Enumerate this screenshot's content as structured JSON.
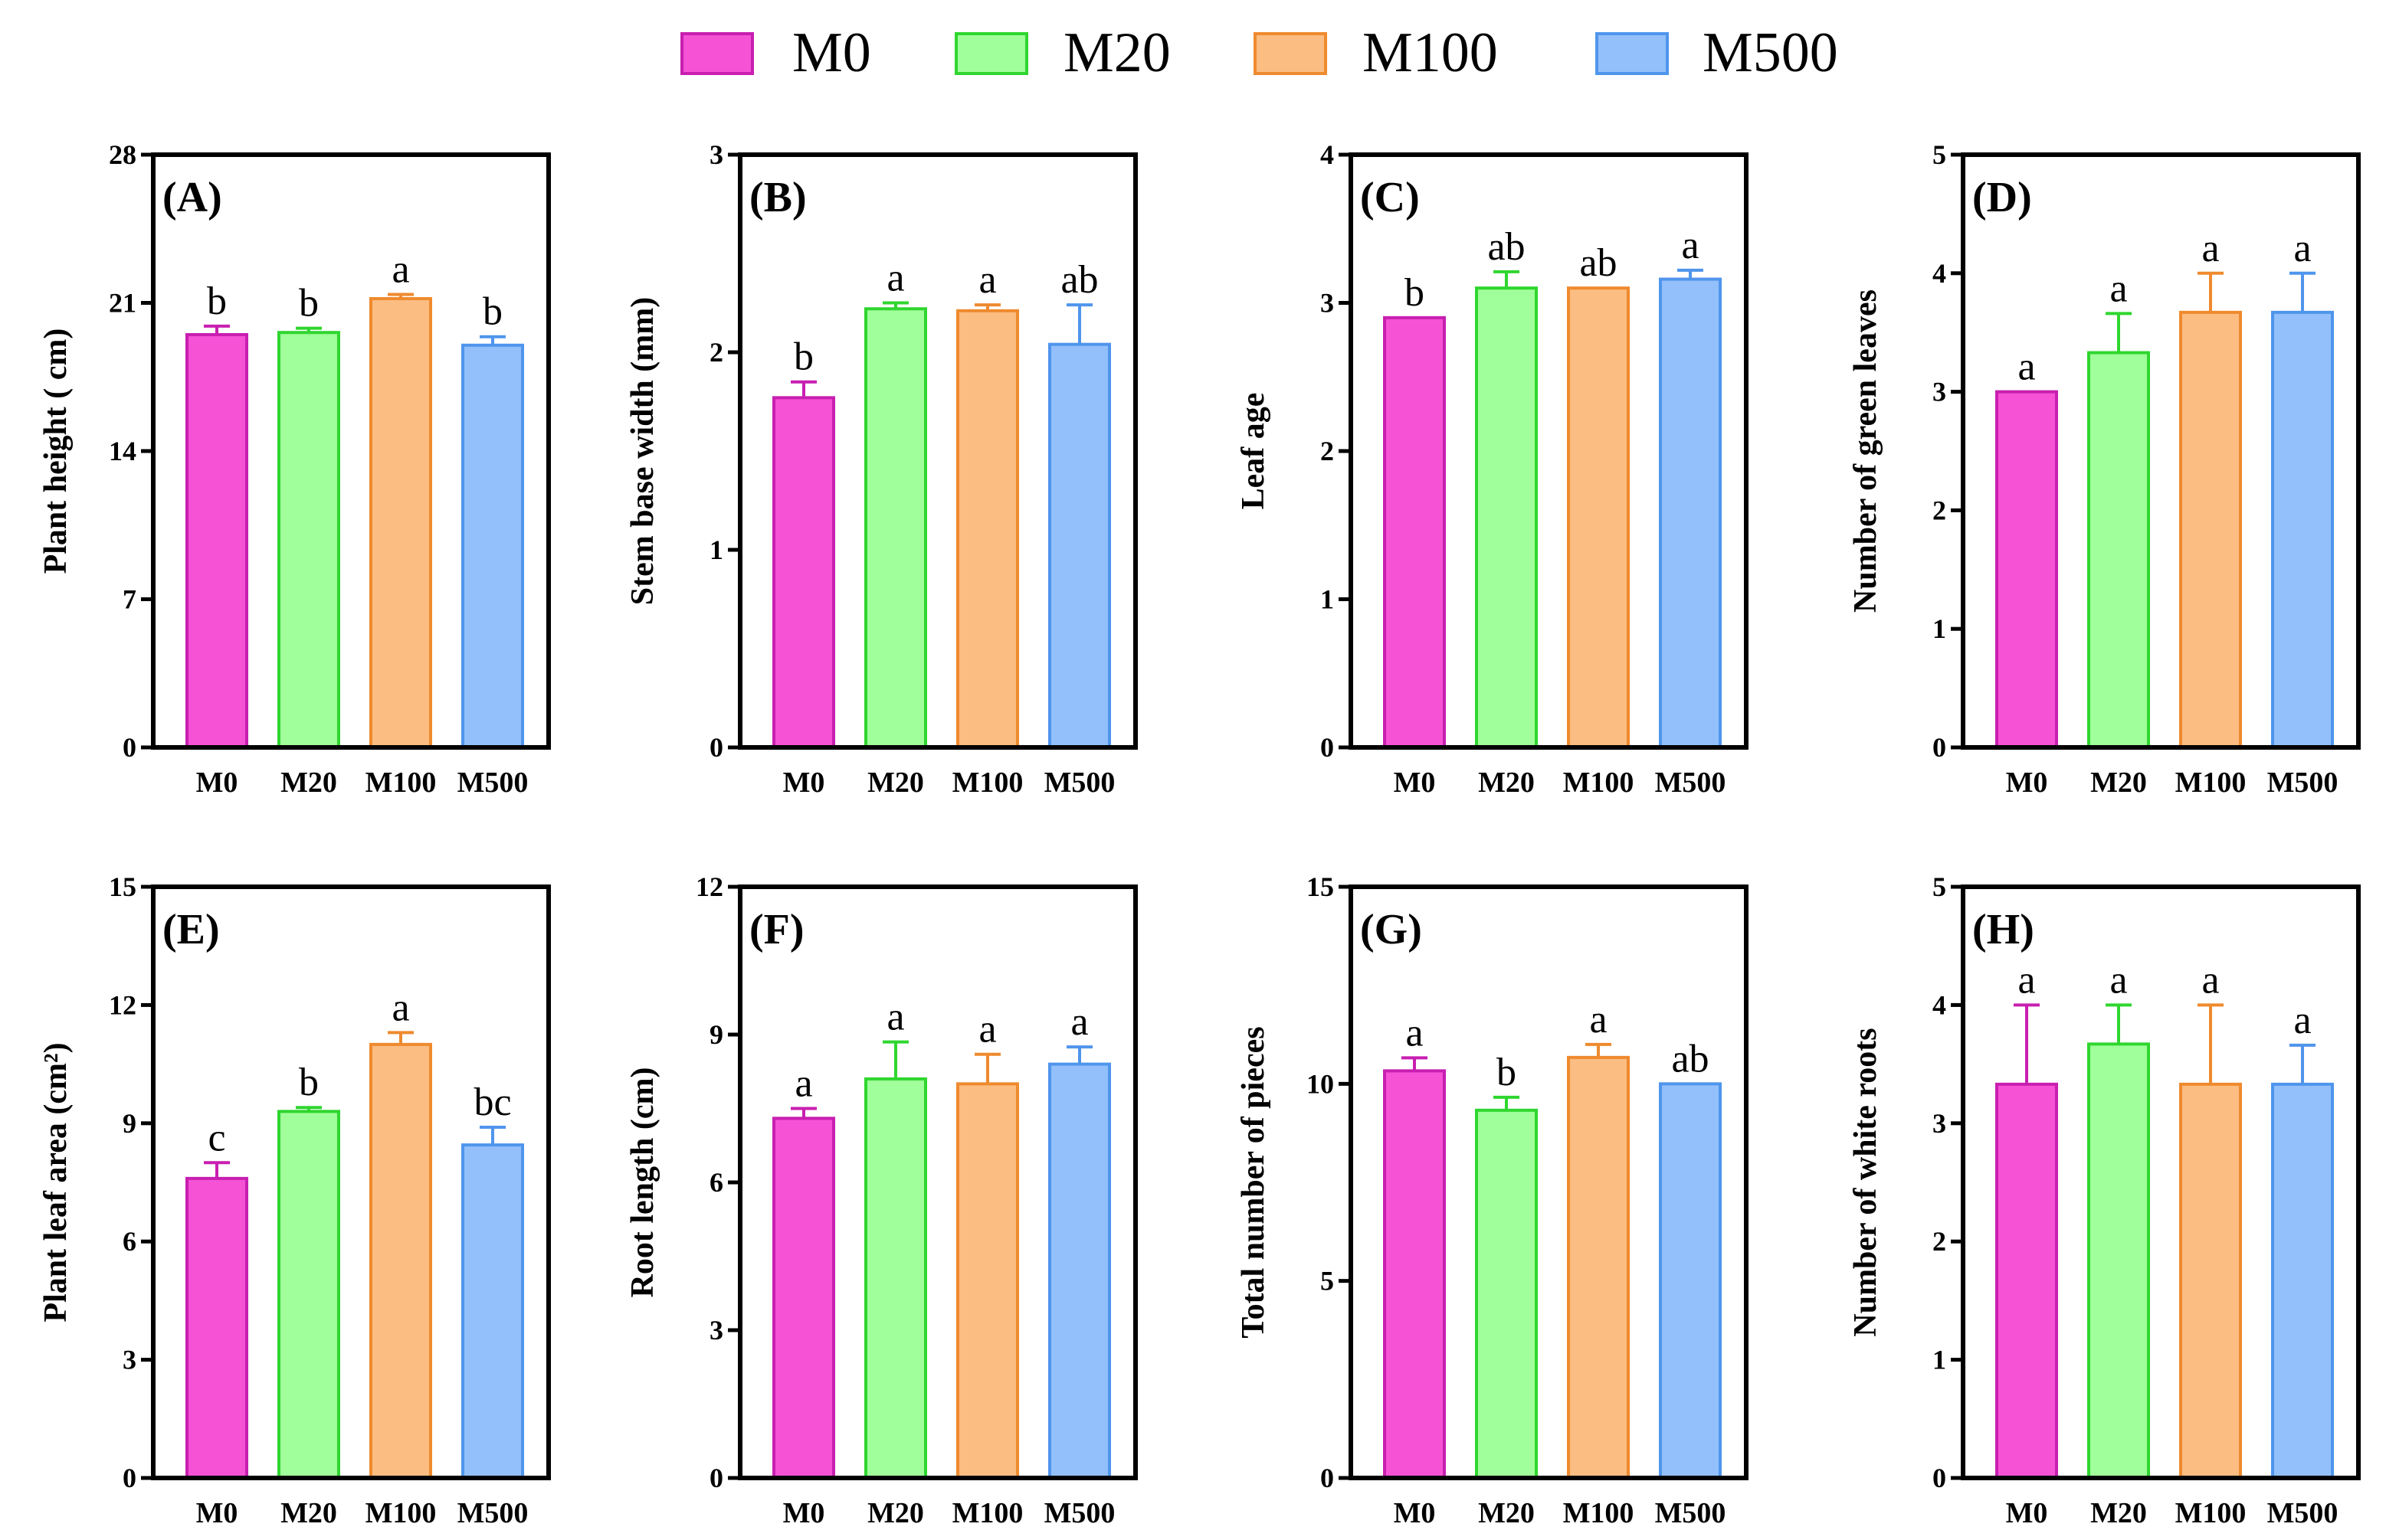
{
  "legend": [
    {
      "label": "M0",
      "fill": "#f552d6",
      "stroke": "#c81fb0"
    },
    {
      "label": "M20",
      "fill": "#a0ff9a",
      "stroke": "#2fd62f"
    },
    {
      "label": "M100",
      "fill": "#fbbd82",
      "stroke": "#ef8a2e"
    },
    {
      "label": "M500",
      "fill": "#93c0fa",
      "stroke": "#4f95ec"
    }
  ],
  "chart_data": [
    {
      "type": "bar",
      "panel": "(A)",
      "ylabel": "Plant height ( cm)",
      "yticks": [
        "0",
        "7",
        "14",
        "21",
        "28"
      ],
      "ylim": [
        0,
        28
      ],
      "categories": [
        "M0",
        "M20",
        "M100",
        "M500"
      ],
      "values": [
        19.5,
        19.6,
        21.2,
        19.0
      ],
      "errors": [
        0.4,
        0.2,
        0.2,
        0.4
      ],
      "letters": [
        "b",
        "b",
        "a",
        "b"
      ]
    },
    {
      "type": "bar",
      "panel": "(B)",
      "ylabel": "Stem base width (mm)",
      "yticks": [
        "0",
        "1",
        "2",
        "3"
      ],
      "ylim": [
        0,
        3
      ],
      "categories": [
        "M0",
        "M20",
        "M100",
        "M500"
      ],
      "values": [
        1.77,
        2.22,
        2.21,
        2.04
      ],
      "errors": [
        0.08,
        0.03,
        0.03,
        0.2
      ],
      "letters": [
        "b",
        "a",
        "a",
        "ab"
      ]
    },
    {
      "type": "bar",
      "panel": "(C)",
      "ylabel": "Leaf age",
      "yticks": [
        "0",
        "1",
        "2",
        "3",
        "4"
      ],
      "ylim": [
        0,
        4
      ],
      "categories": [
        "M0",
        "M20",
        "M100",
        "M500"
      ],
      "values": [
        2.9,
        3.1,
        3.1,
        3.16
      ],
      "errors": [
        0,
        0.11,
        0,
        0.06
      ],
      "letters": [
        "b",
        "ab",
        "ab",
        "a"
      ]
    },
    {
      "type": "bar",
      "panel": "(D)",
      "ylabel": "Number of green leaves",
      "yticks": [
        "0",
        "1",
        "2",
        "3",
        "4",
        "5"
      ],
      "ylim": [
        0,
        5
      ],
      "categories": [
        "M0",
        "M20",
        "M100",
        "M500"
      ],
      "values": [
        3.0,
        3.33,
        3.67,
        3.67
      ],
      "errors": [
        0,
        0.33,
        0.33,
        0.33
      ],
      "letters": [
        "a",
        "a",
        "a",
        "a"
      ]
    },
    {
      "type": "bar",
      "panel": "(E)",
      "ylabel": "Plant leaf area (cm²)",
      "yticks": [
        "0",
        "3",
        "6",
        "9",
        "12",
        "15"
      ],
      "ylim": [
        0,
        15
      ],
      "categories": [
        "M0",
        "M20",
        "M100",
        "M500"
      ],
      "values": [
        7.6,
        9.3,
        11.0,
        8.45
      ],
      "errors": [
        0.4,
        0.1,
        0.3,
        0.45
      ],
      "letters": [
        "c",
        "b",
        "a",
        "bc"
      ]
    },
    {
      "type": "bar",
      "panel": "(F)",
      "ylabel": "Root length (cm)",
      "yticks": [
        "0",
        "3",
        "6",
        "9",
        "12"
      ],
      "ylim": [
        0,
        12
      ],
      "categories": [
        "M0",
        "M20",
        "M100",
        "M500"
      ],
      "values": [
        7.3,
        8.1,
        8.0,
        8.4
      ],
      "errors": [
        0.2,
        0.75,
        0.6,
        0.35
      ],
      "letters": [
        "a",
        "a",
        "a",
        "a"
      ]
    },
    {
      "type": "bar",
      "panel": "(G)",
      "ylabel": "Total number of pieces",
      "yticks": [
        "0",
        "5",
        "10",
        "15"
      ],
      "ylim": [
        0,
        15
      ],
      "categories": [
        "M0",
        "M20",
        "M100",
        "M500"
      ],
      "values": [
        10.33,
        9.33,
        10.67,
        10.0
      ],
      "errors": [
        0.33,
        0.33,
        0.33,
        0
      ],
      "letters": [
        "a",
        "b",
        "a",
        "ab"
      ]
    },
    {
      "type": "bar",
      "panel": "(H)",
      "ylabel": "Number of white roots",
      "yticks": [
        "0",
        "1",
        "2",
        "3",
        "4",
        "5"
      ],
      "ylim": [
        0,
        5
      ],
      "categories": [
        "M0",
        "M20",
        "M100",
        "M500"
      ],
      "values": [
        3.33,
        3.67,
        3.33,
        3.33
      ],
      "errors": [
        0.67,
        0.33,
        0.67,
        0.33
      ],
      "letters": [
        "a",
        "a",
        "a",
        "a"
      ]
    }
  ]
}
